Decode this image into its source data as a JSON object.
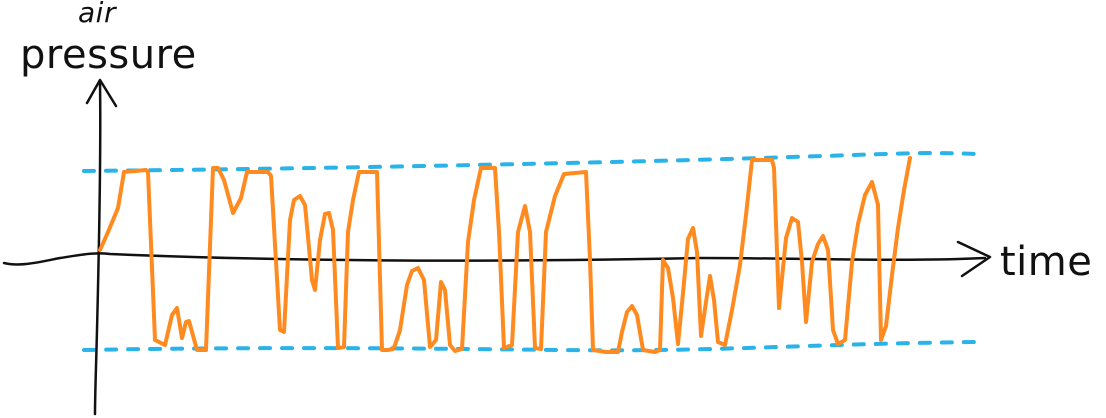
{
  "labels": {
    "y_axis_line1": "air",
    "y_axis_line2": "pressure",
    "x_axis": "time"
  },
  "colors": {
    "axis": "#111111",
    "waveform": "#ff8a1f",
    "bounds": "#29b3e8",
    "background": "#ffffff"
  }
}
